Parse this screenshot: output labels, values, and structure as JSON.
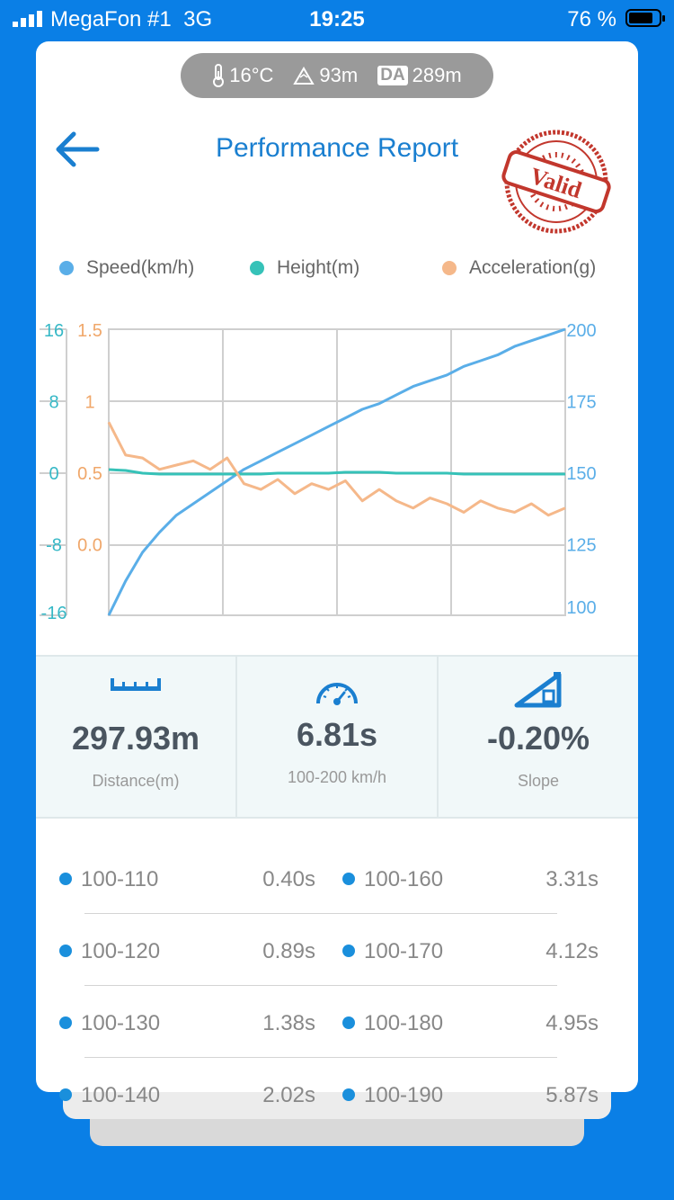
{
  "status_bar": {
    "carrier": "MegaFon #1",
    "network": "3G",
    "time": "19:25",
    "battery_percent": "76 %"
  },
  "conditions": {
    "temperature": "16°C",
    "altitude": "93m",
    "density_altitude_label": "DA",
    "density_altitude": "289m"
  },
  "header": {
    "title": "Performance Report",
    "stamp_text": "Valid"
  },
  "legend": [
    {
      "name": "Speed(km/h)",
      "color": "#5aaee8"
    },
    {
      "name": "Height(m)",
      "color": "#36c2b8"
    },
    {
      "name": "Acceleration(g)",
      "color": "#f5b88a"
    }
  ],
  "chart_data": {
    "type": "line",
    "grid": true,
    "axes": {
      "height": {
        "side": "left-outer",
        "ticks": [
          "16",
          "8",
          "0",
          "-8",
          "-16"
        ],
        "range": [
          -16,
          16
        ],
        "color": "#36b8c6"
      },
      "acceleration": {
        "side": "left-inner",
        "ticks": [
          "1.5",
          "1",
          "0.5",
          "0.0"
        ],
        "range": [
          -0.5,
          1.5
        ],
        "color": "#f0a76a"
      },
      "speed": {
        "side": "right",
        "ticks": [
          "200",
          "175",
          "150",
          "125",
          "100"
        ],
        "range": [
          100,
          200
        ],
        "color": "#5aaee8"
      }
    },
    "series": [
      {
        "name": "Speed(km/h)",
        "axis": "speed",
        "values": [
          100,
          112,
          122,
          129,
          135,
          139,
          143,
          147,
          151,
          154,
          157,
          160,
          163,
          166,
          169,
          172,
          174,
          177,
          180,
          182,
          184,
          187,
          189,
          191,
          194,
          196,
          198,
          200
        ]
      },
      {
        "name": "Height(m)",
        "axis": "height",
        "values": [
          0.3,
          0.2,
          -0.1,
          -0.2,
          -0.2,
          -0.2,
          -0.2,
          -0.2,
          -0.2,
          -0.2,
          -0.1,
          -0.1,
          -0.1,
          -0.1,
          0,
          0,
          0,
          -0.1,
          -0.1,
          -0.1,
          -0.1,
          -0.2,
          -0.2,
          -0.2,
          -0.2,
          -0.2,
          -0.2,
          -0.2
        ]
      },
      {
        "name": "Acceleration(g)",
        "axis": "acceleration",
        "values": [
          0.85,
          0.62,
          0.6,
          0.52,
          0.55,
          0.58,
          0.52,
          0.6,
          0.42,
          0.38,
          0.45,
          0.35,
          0.42,
          0.38,
          0.44,
          0.3,
          0.38,
          0.3,
          0.25,
          0.32,
          0.28,
          0.22,
          0.3,
          0.25,
          0.22,
          0.28,
          0.2,
          0.25
        ]
      }
    ]
  },
  "stats": [
    {
      "icon": "ruler-icon",
      "value": "297.93m",
      "label": "Distance(m)"
    },
    {
      "icon": "speedometer-icon",
      "value": "6.81s",
      "label": "100-200 km/h"
    },
    {
      "icon": "slope-icon",
      "value": "-0.20%",
      "label": "Slope"
    }
  ],
  "splits": [
    {
      "left": {
        "range": "100-110",
        "time": "0.40s"
      },
      "right": {
        "range": "100-160",
        "time": "3.31s"
      }
    },
    {
      "left": {
        "range": "100-120",
        "time": "0.89s"
      },
      "right": {
        "range": "100-170",
        "time": "4.12s"
      }
    },
    {
      "left": {
        "range": "100-130",
        "time": "1.38s"
      },
      "right": {
        "range": "100-180",
        "time": "4.95s"
      }
    },
    {
      "left": {
        "range": "100-140",
        "time": "2.02s"
      },
      "right": {
        "range": "100-190",
        "time": "5.87s"
      }
    }
  ],
  "colors": {
    "background": "#0a7fe6",
    "accent": "#1a7fd0",
    "stamp": "#c2372d"
  }
}
